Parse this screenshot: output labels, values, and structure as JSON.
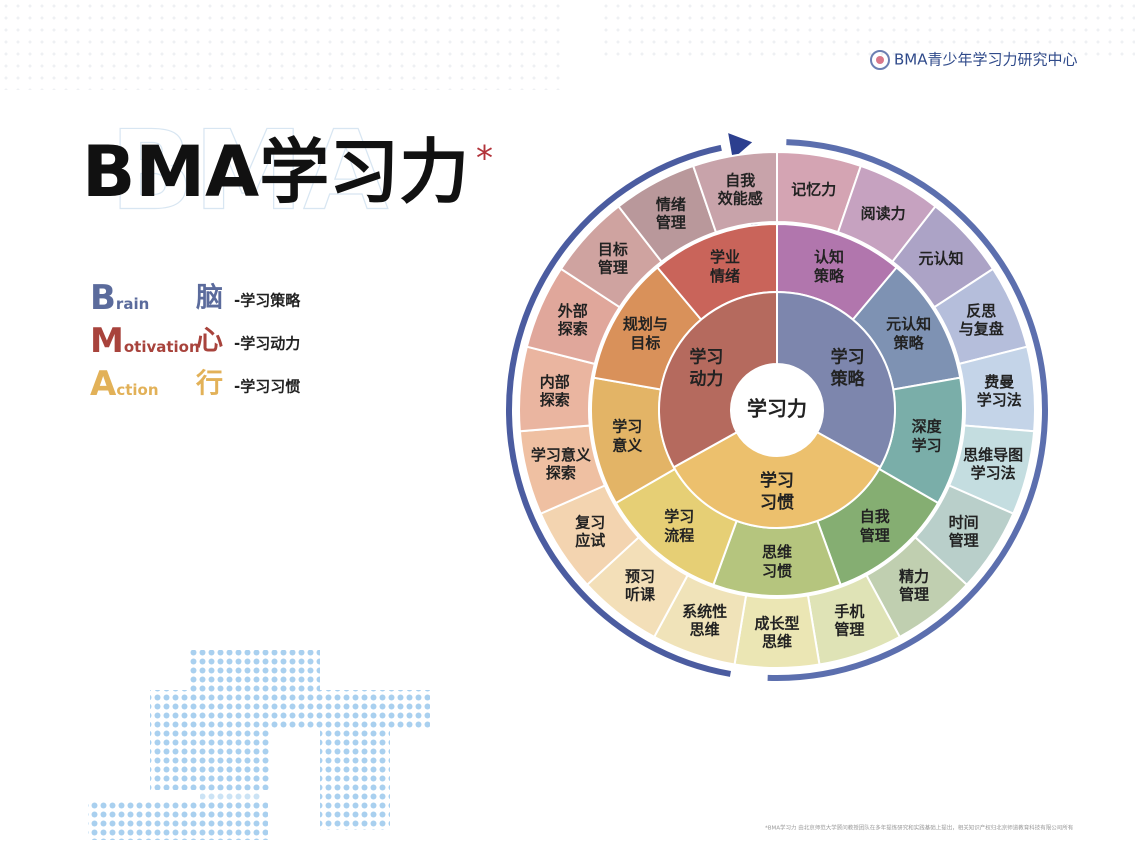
{
  "header": {
    "logo_text": "BMA青少年学习力研究中心"
  },
  "title": {
    "text": "BMA学习力",
    "mark": "*",
    "watermark": "BMA"
  },
  "legend": [
    {
      "letter": "B",
      "rest": "rain",
      "char": "脑",
      "desc": "-学习策略"
    },
    {
      "letter": "M",
      "rest": "otivation",
      "char": "心",
      "desc": "-学习动力"
    },
    {
      "letter": "A",
      "rest": "ction",
      "char": "行",
      "desc": "-学习习惯"
    }
  ],
  "wheel": {
    "center": "学习力",
    "inner": [
      {
        "lines": [
          "学习",
          "策略"
        ]
      },
      {
        "lines": [
          "学习",
          "习惯"
        ]
      },
      {
        "lines": [
          "学习",
          "动力"
        ]
      }
    ],
    "middle": [
      {
        "lines": [
          "认知",
          "策略"
        ]
      },
      {
        "lines": [
          "元认知",
          "策略"
        ]
      },
      {
        "lines": [
          "深度",
          "学习"
        ]
      },
      {
        "lines": [
          "自我",
          "管理"
        ]
      },
      {
        "lines": [
          "思维",
          "习惯"
        ]
      },
      {
        "lines": [
          "学习",
          "流程"
        ]
      },
      {
        "lines": [
          "学习",
          "意义"
        ]
      },
      {
        "lines": [
          "规划与",
          "目标"
        ]
      },
      {
        "lines": [
          "学业",
          "情绪"
        ]
      }
    ],
    "outer": [
      {
        "lines": [
          "记忆力"
        ]
      },
      {
        "lines": [
          "阅读力"
        ]
      },
      {
        "lines": [
          "元认知"
        ]
      },
      {
        "lines": [
          "反思",
          "与复盘"
        ]
      },
      {
        "lines": [
          "费曼",
          "学习法"
        ]
      },
      {
        "lines": [
          "思维导图",
          "学习法"
        ]
      },
      {
        "lines": [
          "时间",
          "管理"
        ]
      },
      {
        "lines": [
          "精力",
          "管理"
        ]
      },
      {
        "lines": [
          "手机",
          "管理"
        ]
      },
      {
        "lines": [
          "成长型",
          "思维"
        ]
      },
      {
        "lines": [
          "系统性",
          "思维"
        ]
      },
      {
        "lines": [
          "预习",
          "听课"
        ]
      },
      {
        "lines": [
          "复习",
          "应试"
        ]
      },
      {
        "lines": [
          "学习意义",
          "探索"
        ]
      },
      {
        "lines": [
          "内部",
          "探索"
        ]
      },
      {
        "lines": [
          "外部",
          "探索"
        ]
      },
      {
        "lines": [
          "目标",
          "管理"
        ]
      },
      {
        "lines": [
          "情绪",
          "管理"
        ]
      },
      {
        "lines": [
          "自我",
          "效能感"
        ]
      }
    ]
  },
  "footer": "*BMA学习力 由北京师范大学顾问教授团队在多年提炼研究和实践基础上提出，相关知识产权归北京师道教育科技有限公司所有"
}
